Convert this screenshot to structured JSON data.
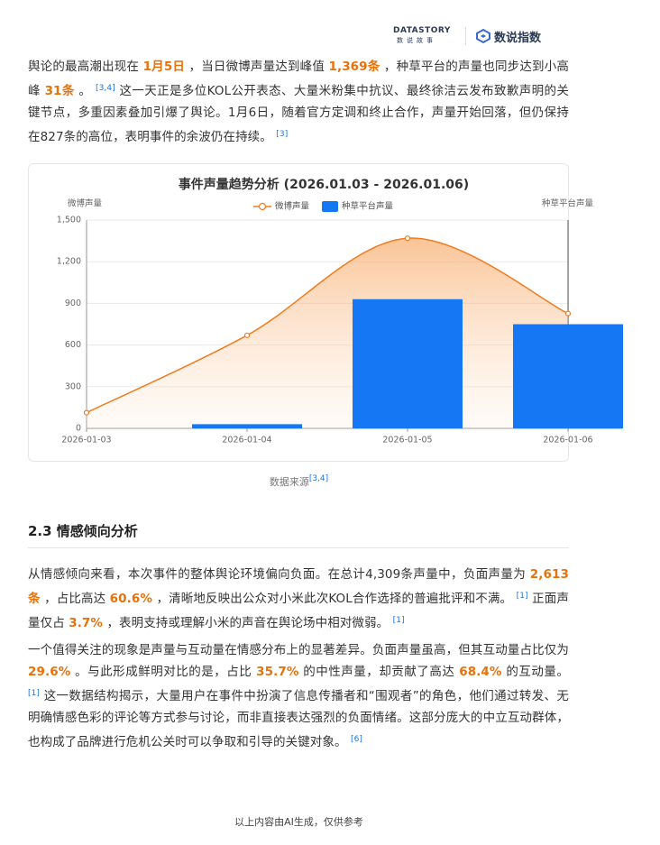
{
  "header": {
    "brand_en": "DATASTORY",
    "brand_cn": "数说故事",
    "product": "数说指数"
  },
  "paragraphs_top": [
    {
      "runs": [
        {
          "text": "舆论的最高潮出现在 "
        },
        {
          "text": "1月5日",
          "highlight": true
        },
        {
          "text": " ，当日微博声量达到峰值 "
        },
        {
          "text": "1,369条",
          "highlight": true
        },
        {
          "text": " ，种草平台的声量也同步达到小高峰 "
        },
        {
          "text": "31条",
          "highlight": true
        },
        {
          "text": " 。 "
        },
        {
          "cite": "[3,4]"
        },
        {
          "text": " 这一天正是多位KOL公开表态、大量米粉集中抗议、最终徐洁云发布致歉声明的关键节点，多重因素叠加引爆了舆论。1月6日，随着官方定调和终止合作，声量开始回落，但仍保持在827条的高位，表明事件的余波仍在持续。 "
        },
        {
          "cite": "[3]"
        }
      ]
    }
  ],
  "chart_data": {
    "type": "bar-line",
    "title": "事件声量趋势分析 (2026.01.03 - 2026.01.06)",
    "y_label": "微博声量",
    "y2_label": "种草平台声量",
    "categories": [
      "2026-01-03",
      "2026-01-04",
      "2026-01-05",
      "2026-01-06"
    ],
    "series": [
      {
        "name": "微博声量",
        "type": "line",
        "color": "#f07c1e",
        "values": [
          113,
          670,
          1369,
          827
        ]
      },
      {
        "name": "种草平台声量",
        "type": "bar",
        "axis": "y2",
        "color": "#1677f5",
        "values": [
          0,
          1,
          31,
          25
        ]
      }
    ],
    "ylim": [
      0,
      1500
    ],
    "yticks": [
      0,
      300,
      600,
      900,
      {
        "value": 1200,
        "label": "1,200"
      },
      {
        "value": 1500,
        "label": "1,500"
      }
    ],
    "y2lim": [
      0,
      50
    ],
    "grid": true
  },
  "source": {
    "label": "数据来源",
    "cite": "[3,4]"
  },
  "section": {
    "heading": "2.3 情感倾向分析"
  },
  "paragraphs": [
    {
      "runs": [
        {
          "text": "从情感倾向来看，本次事件的整体舆论环境偏向负面。在总计4,309条声量中，负面声量为 "
        },
        {
          "text": "2,613条",
          "highlight": true
        },
        {
          "text": " ，占比高达 "
        },
        {
          "text": "60.6%",
          "highlight": true
        },
        {
          "text": " ，清晰地反映出公众对小米此次KOL合作选择的普遍批评和不满。 "
        },
        {
          "cite": "[1]"
        },
        {
          "text": " 正面声量仅占 "
        },
        {
          "text": "3.7%",
          "highlight": true
        },
        {
          "text": " ，表明支持或理解小米的声音在舆论场中相对微弱。 "
        },
        {
          "cite": "[1]"
        }
      ]
    },
    {
      "runs": [
        {
          "text": "一个值得关注的现象是声量与互动量在情感分布上的显著差异。负面声量虽高，但其互动量占比仅为 "
        },
        {
          "text": "29.6%",
          "highlight": true
        },
        {
          "text": " 。与此形成鲜明对比的是，占比 "
        },
        {
          "text": "35.7%",
          "highlight": true
        },
        {
          "text": " 的中性声量，却贡献了高达 "
        },
        {
          "text": "68.4%",
          "highlight": true
        },
        {
          "text": " 的互动量。 "
        },
        {
          "cite": "[1]"
        },
        {
          "text": " 这一数据结构揭示，大量用户在事件中扮演了信息传播者和“围观者”的角色，他们通过转发、无明确情感色彩的评论等方式参与讨论，而非直接表达强烈的负面情绪。这部分庞大的中立互动群体，也构成了品牌进行危机公关时可以争取和引导的关键对象。 "
        },
        {
          "cite": "[6]"
        }
      ]
    }
  ],
  "footer": {
    "note": "以上内容由AI生成，仅供参考"
  }
}
